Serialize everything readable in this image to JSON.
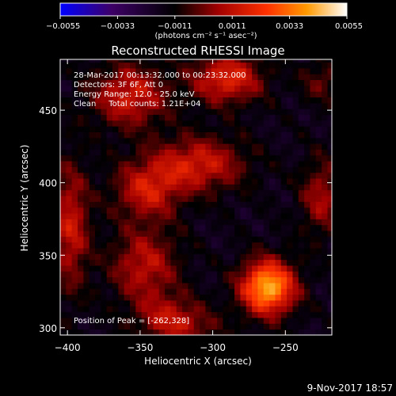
{
  "chart_data": {
    "type": "heatmap",
    "title": "Reconstructed RHESSI Image",
    "xlabel": "Heliocentric X (arcsec)",
    "ylabel": "Heliocentric Y (arcsec)",
    "xlim": [
      -405,
      -218
    ],
    "ylim": [
      295,
      485
    ],
    "x_ticks": [
      -400,
      -350,
      -300,
      -250
    ],
    "y_ticks": [
      300,
      350,
      400,
      450
    ],
    "colorbar": {
      "min": -0.0055,
      "max": 0.0055,
      "ticks": [
        -0.0055,
        -0.0033,
        -0.0011,
        0.0011,
        0.0033,
        0.0055
      ],
      "tick_labels": [
        "-0.0055",
        "-0.0033",
        "-0.0011",
        "0.0011",
        "0.0033",
        "0.0055"
      ],
      "unit_label": "(photons cm⁻² s⁻¹ asec⁻²)",
      "colormap": [
        "#0000ff",
        "#3d0066",
        "#000000",
        "#a00000",
        "#ff3000",
        "#ff9a00",
        "#ffffff"
      ]
    },
    "annotations": [
      "28-Mar-2017 00:13:32.000 to 00:23:32.000",
      "Detectors: 3F 6F, Att 0",
      "Energy Range: 12.0 - 25.0 keV",
      "Clean     Total counts: 1.21E+04"
    ],
    "peak_label": "Position of Peak = [-262,328]",
    "peak": {
      "x": -262,
      "y": 328,
      "value": 0.0055
    },
    "features": [
      {
        "x": -262,
        "y": 328,
        "amp": 0.006,
        "sx": 13,
        "sy": 13
      },
      {
        "x": -290,
        "y": 472,
        "amp": 0.0034,
        "sx": 17,
        "sy": 12
      },
      {
        "x": -357,
        "y": 460,
        "amp": 0.003,
        "sx": 18,
        "sy": 15
      },
      {
        "x": -310,
        "y": 413,
        "amp": 0.003,
        "sx": 22,
        "sy": 13
      },
      {
        "x": -345,
        "y": 395,
        "amp": 0.0028,
        "sx": 16,
        "sy": 14
      },
      {
        "x": -347,
        "y": 343,
        "amp": 0.0026,
        "sx": 16,
        "sy": 18
      },
      {
        "x": -398,
        "y": 370,
        "amp": 0.0028,
        "sx": 9,
        "sy": 30
      },
      {
        "x": -225,
        "y": 390,
        "amp": 0.0022,
        "sx": 10,
        "sy": 18
      },
      {
        "x": -330,
        "y": 310,
        "amp": 0.0018,
        "sx": 16,
        "sy": 10
      },
      {
        "x": -225,
        "y": 470,
        "amp": 0.0014,
        "sx": 10,
        "sy": 10
      },
      {
        "x": -320,
        "y": 300,
        "amp": 0.0016,
        "sx": 18,
        "sy": 8
      }
    ]
  },
  "footer_timestamp": "9-Nov-2017 18:57"
}
